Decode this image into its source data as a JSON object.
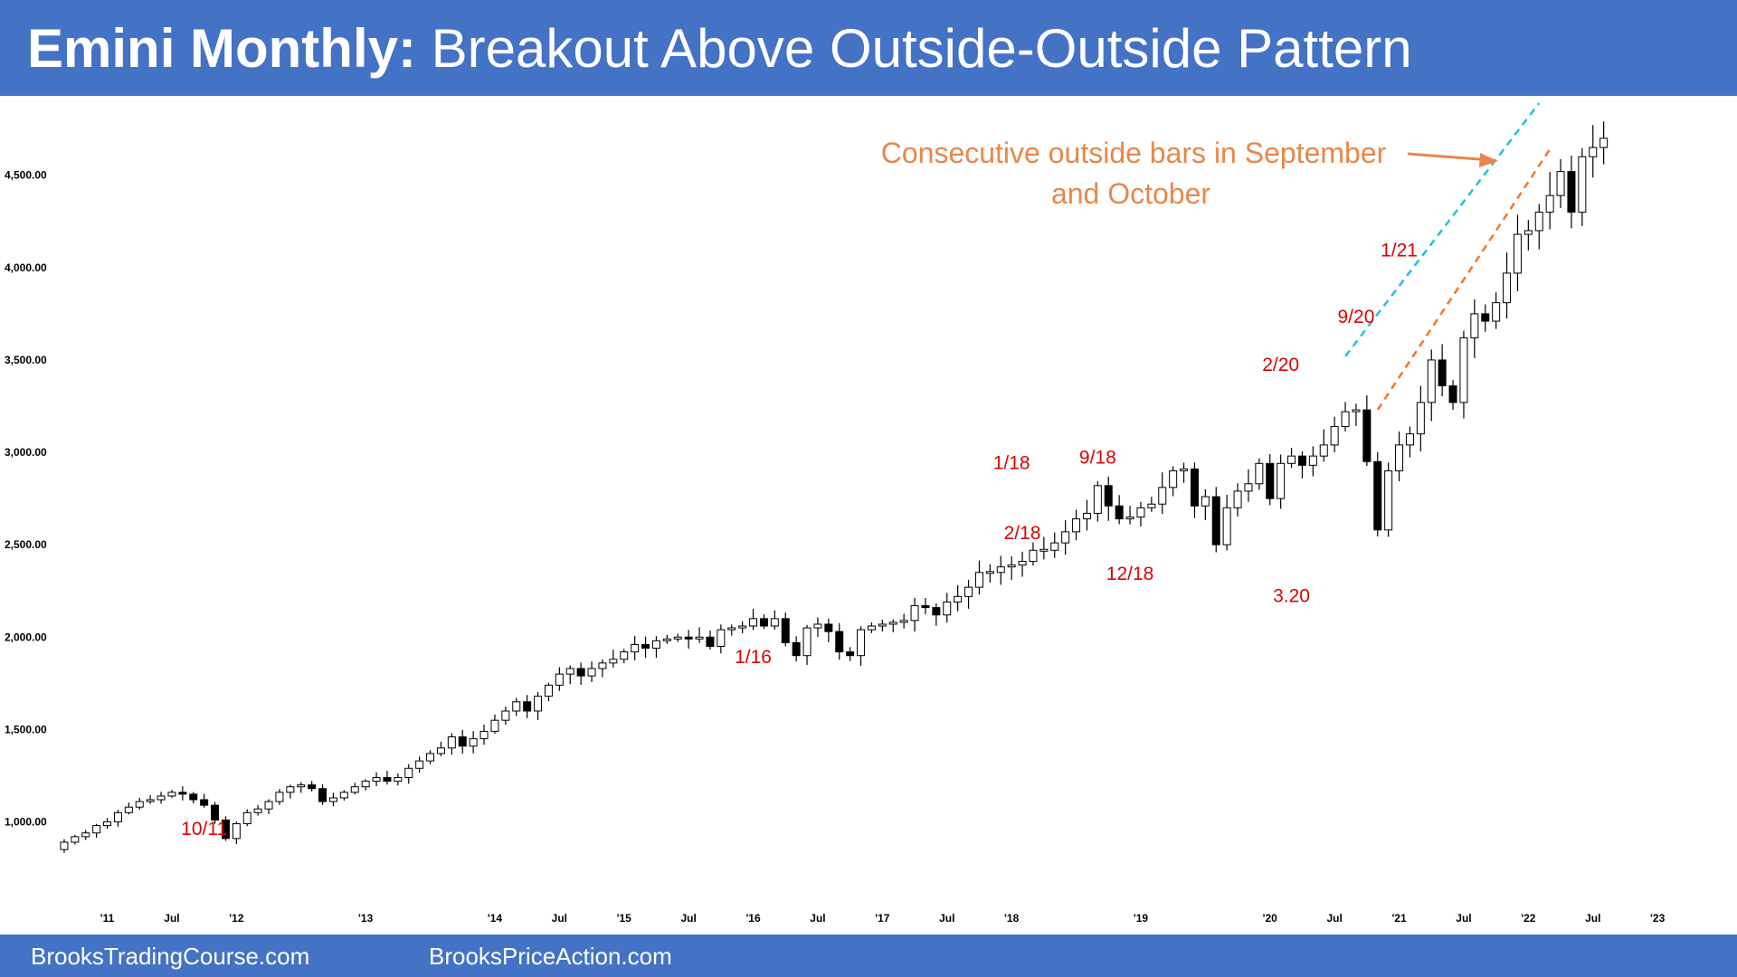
{
  "header": {
    "title_bold": "Emini Monthly:",
    "title_rest": "Breakout Above Outside-Outside Pattern",
    "bg_color": "#4472c4"
  },
  "footer": {
    "link1": "BrooksTradingCourse.com",
    "link2": "BrooksPriceAction.com"
  },
  "annotation": {
    "line1": "Consecutive outside bars in September",
    "line2": "and October",
    "color": "#e8874a"
  },
  "chart_data": {
    "type": "candlestick",
    "title": "Emini Monthly: Breakout Above Outside-Outside Pattern",
    "ylim": [
      650,
      4900
    ],
    "y_ticks": [
      "1,000.00",
      "1,500.00",
      "2,000.00",
      "2,500.00",
      "3,000.00",
      "3,500.00",
      "4,000.00",
      "4,500.00"
    ],
    "y_tick_values": [
      1000,
      1500,
      2000,
      2500,
      3000,
      3500,
      4000,
      4500
    ],
    "x_tick_labels": [
      {
        "label": "'11",
        "month": "2011-01"
      },
      {
        "label": "Jul",
        "month": "2011-07"
      },
      {
        "label": "'12",
        "month": "2012-01"
      },
      {
        "label": "'13",
        "month": "2013-01"
      },
      {
        "label": "'14",
        "month": "2014-01"
      },
      {
        "label": "Jul",
        "month": "2014-07"
      },
      {
        "label": "'15",
        "month": "2015-01"
      },
      {
        "label": "Jul",
        "month": "2015-07"
      },
      {
        "label": "'16",
        "month": "2016-01"
      },
      {
        "label": "Jul",
        "month": "2016-07"
      },
      {
        "label": "'17",
        "month": "2017-01"
      },
      {
        "label": "Jul",
        "month": "2017-07"
      },
      {
        "label": "'18",
        "month": "2018-01"
      },
      {
        "label": "'19",
        "month": "2019-01"
      },
      {
        "label": "'20",
        "month": "2020-01"
      },
      {
        "label": "Jul",
        "month": "2020-07"
      },
      {
        "label": "'21",
        "month": "2021-01"
      },
      {
        "label": "Jul",
        "month": "2021-07"
      },
      {
        "label": "'22",
        "month": "2022-01"
      },
      {
        "label": "Jul",
        "month": "2022-07"
      },
      {
        "label": "'23",
        "month": "2023-01"
      }
    ],
    "start_month": "2010-09",
    "closes": [
      890,
      920,
      940,
      980,
      1000,
      1050,
      1080,
      1110,
      1120,
      1140,
      1160,
      1150,
      1120,
      1090,
      1010,
      910,
      990,
      1050,
      1070,
      1110,
      1160,
      1190,
      1200,
      1180,
      1110,
      1130,
      1160,
      1190,
      1220,
      1240,
      1220,
      1240,
      1290,
      1330,
      1370,
      1400,
      1460,
      1410,
      1450,
      1490,
      1550,
      1600,
      1650,
      1600,
      1680,
      1740,
      1800,
      1830,
      1790,
      1830,
      1860,
      1880,
      1920,
      1960,
      1940,
      1980,
      1990,
      2000,
      1990,
      2000,
      1950,
      2040,
      2050,
      2060,
      2100,
      2060,
      2100,
      1970,
      1900,
      2050,
      2070,
      2030,
      1920,
      1900,
      2040,
      2060,
      2070,
      2080,
      2090,
      2170,
      2160,
      2120,
      2190,
      2220,
      2270,
      2350,
      2350,
      2380,
      2390,
      2410,
      2470,
      2470,
      2510,
      2570,
      2640,
      2670,
      2820,
      2710,
      2640,
      2650,
      2700,
      2720,
      2810,
      2900,
      2910,
      2710,
      2760,
      2500,
      2700,
      2790,
      2830,
      2940,
      2750,
      2940,
      2980,
      2930,
      2980,
      3040,
      3140,
      3220,
      3230,
      2950,
      2580,
      2900,
      3040,
      3100,
      3270,
      3500,
      3360,
      3270,
      3620,
      3750,
      3710,
      3810,
      3970,
      4180,
      4200,
      4300,
      4390,
      4520,
      4300,
      4600,
      4650,
      4700
    ],
    "last_month": "2021-12",
    "swing_labels": [
      {
        "label": "10/11",
        "month": "2011-10",
        "value": 930
      },
      {
        "label": "1/16",
        "month": "2016-01",
        "value": 1860
      },
      {
        "label": "1/18",
        "month": "2018-01",
        "value": 2910
      },
      {
        "label": "2/18",
        "month": "2018-02",
        "value": 2530
      },
      {
        "label": "9/18",
        "month": "2018-09",
        "value": 2940
      },
      {
        "label": "12/18",
        "month": "2018-12",
        "value": 2310
      },
      {
        "label": "2/20",
        "month": "2020-02",
        "value": 3440
      },
      {
        "label": "3.20",
        "month": "2020-03",
        "value": 2190
      },
      {
        "label": "9/20",
        "month": "2020-09",
        "value": 3700
      },
      {
        "label": "1/21",
        "month": "2021-01",
        "value": 4060
      }
    ],
    "trendlines": [
      {
        "name": "cyan",
        "color": "#1fc3d6",
        "from": {
          "month": "2020-08",
          "value": 3520
        },
        "to": {
          "month": "2022-02",
          "value": 4890
        }
      },
      {
        "name": "orange",
        "color": "#f07828",
        "from": {
          "month": "2020-11",
          "value": 3230
        },
        "to": {
          "month": "2022-03",
          "value": 4640
        }
      }
    ],
    "up_color": "#ffffff",
    "down_color": "#000000"
  }
}
